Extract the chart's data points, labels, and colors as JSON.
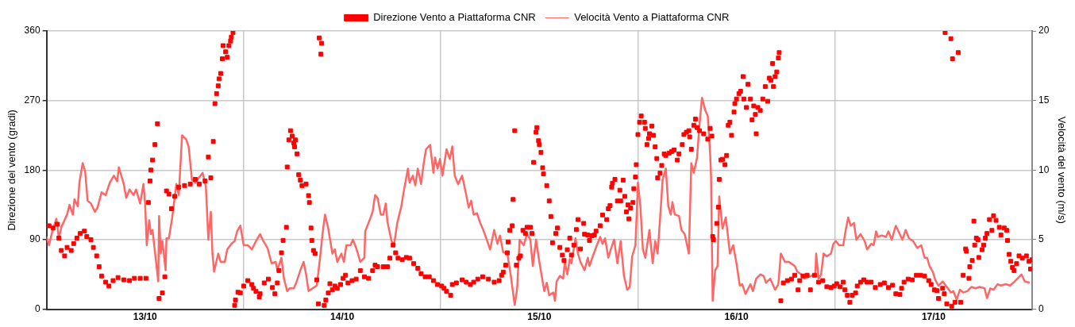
{
  "chart_data": {
    "type": "scatter",
    "ylabel": "Direzione del vento (gradi)",
    "y2label": "Velocità del vento (m/s)",
    "xlim": [
      "--10-13",
      "--10-18"
    ],
    "xticks": [
      {
        "value": "--10-13",
        "label": null
      },
      {
        "value": "--10-13T12:00",
        "label": "13/10"
      },
      {
        "value": "--10-14",
        "label": null
      },
      {
        "value": "--10-14T12:00",
        "label": "14/10"
      },
      {
        "value": "--10-15",
        "label": null
      },
      {
        "value": "--10-15T12:00",
        "label": "15/10"
      },
      {
        "value": "--10-16",
        "label": null
      },
      {
        "value": "--10-16T12:00",
        "label": "16/10"
      },
      {
        "value": "--10-17",
        "label": null
      },
      {
        "value": "--10-17T12:00",
        "label": "17/10"
      },
      {
        "value": "--10-18",
        "label": null
      }
    ],
    "ylim": [
      0,
      360
    ],
    "yticks": [
      0,
      90,
      180,
      270,
      360
    ],
    "y2lim": [
      0,
      20
    ],
    "y2ticks": [
      0,
      5,
      10,
      15,
      20
    ],
    "grid": true,
    "legend": "top",
    "series": [
      {
        "name": "Direzione Vento a Piattaforma CNR",
        "color": "#ff0000",
        "marker": "square",
        "x": [
          "--10-13T00:18",
          "--10-13T00:48",
          "--10-13T01:18",
          "--10-13T01:30",
          "--10-13T01:48",
          "--10-13T02:12",
          "--10-13T02:30",
          "--10-13T03:00",
          "--10-13T03:18",
          "--10-13T03:42",
          "--10-13T04:06",
          "--10-13T04:36",
          "--10-13T04:54",
          "--10-13T05:24",
          "--10-13T05:42",
          "--10-13T06:06",
          "--10-13T06:24",
          "--10-13T06:42",
          "--10-13T07:12",
          "--10-13T07:36",
          "--10-13T08:06",
          "--10-13T08:42",
          "--10-13T09:24",
          "--10-13T10:06",
          "--10-13T10:42",
          "--10-13T11:24",
          "--10-13T12:06",
          "--10-13T12:24",
          "--10-13T12:36",
          "--10-13T12:42",
          "--10-13T12:54",
          "--10-13T13:12",
          "--10-13T13:30",
          "--10-13T13:42",
          "--10-13T14:06",
          "--10-13T14:24",
          "--10-13T14:36",
          "--10-13T14:54",
          "--10-13T15:12",
          "--10-13T15:36",
          "--10-13T16:06",
          "--10-13T16:48",
          "--10-13T17:30",
          "--10-13T18:06",
          "--10-13T18:36",
          "--10-13T19:18",
          "--10-13T19:42",
          "--10-13T20:00",
          "--10-13T20:18",
          "--10-13T20:30",
          "--10-13T20:42",
          "--10-13T20:54",
          "--10-13T21:00",
          "--10-13T21:12",
          "--10-13T21:24",
          "--10-13T21:30",
          "--10-13T21:48",
          "--10-13T22:00",
          "--10-13T22:12",
          "--10-13T22:24",
          "--10-13T22:30",
          "--10-13T22:42",
          "--10-13T22:54",
          "--10-13T23:00",
          "--10-13T23:18",
          "--10-13T23:36",
          "--10-14T00:00",
          "--10-14T00:30",
          "--10-14T01:00",
          "--10-14T01:12",
          "--10-14T01:30",
          "--10-14T01:54",
          "--10-14T02:00",
          "--10-14T02:30",
          "--10-14T03:00",
          "--10-14T03:30",
          "--10-14T03:48",
          "--10-14T04:06",
          "--10-14T04:18",
          "--10-14T04:36",
          "--10-14T04:48",
          "--10-14T05:12",
          "--10-14T05:18",
          "--10-14T05:30",
          "--10-14T05:42",
          "--10-14T05:54",
          "--10-14T06:06",
          "--10-14T06:12",
          "--10-14T06:18",
          "--10-14T06:30",
          "--10-14T06:42",
          "--10-14T06:54",
          "--10-14T07:06",
          "--10-14T07:36",
          "--10-14T07:54",
          "--10-14T08:00",
          "--10-14T08:12",
          "--10-14T08:18",
          "--10-14T08:30",
          "--10-14T08:42",
          "--10-14T08:54",
          "--10-14T09:06",
          "--10-14T09:12",
          "--10-14T09:24",
          "--10-14T09:30",
          "--10-14T09:48",
          "--10-14T10:00",
          "--10-14T10:18",
          "--10-14T10:30",
          "--10-14T10:48",
          "--10-14T11:06",
          "--10-14T11:24",
          "--10-14T11:48",
          "--10-14T12:06",
          "--10-14T12:24",
          "--10-14T12:42",
          "--10-14T13:12",
          "--10-14T13:42",
          "--10-14T14:12",
          "--10-14T14:42",
          "--10-14T15:12",
          "--10-14T15:42",
          "--10-14T16:00",
          "--10-14T16:18",
          "--10-14T17:00",
          "--10-14T17:30",
          "--10-14T17:48",
          "--10-14T18:12",
          "--10-14T18:30",
          "--10-14T18:48",
          "--10-14T19:18",
          "--10-14T19:48",
          "--10-14T20:12",
          "--10-14T20:42",
          "--10-14T21:12",
          "--10-14T21:36",
          "--10-14T22:06",
          "--10-14T22:36",
          "--10-14T23:06",
          "--10-14T23:36",
          "--10-15T00:06",
          "--10-15T00:24",
          "--10-15T00:42",
          "--10-15T01:12",
          "--10-15T01:24",
          "--10-15T01:54",
          "--10-15T02:36",
          "--10-15T03:06",
          "--10-15T03:36",
          "--10-15T04:00",
          "--10-15T04:30",
          "--10-15T05:06",
          "--10-15T05:48",
          "--10-15T06:30",
          "--10-15T07:06",
          "--10-15T07:24",
          "--10-15T07:36",
          "--10-15T07:54",
          "--10-15T08:06",
          "--10-15T08:12",
          "--10-15T08:24",
          "--10-15T08:42",
          "--10-15T08:48",
          "--10-15T09:00",
          "--10-15T09:12",
          "--10-15T09:30",
          "--10-15T09:42",
          "--10-15T10:00",
          "--10-15T10:18",
          "--10-15T10:30",
          "--10-15T10:54",
          "--10-15T11:06",
          "--10-15T11:18",
          "--10-15T11:36",
          "--10-15T11:42",
          "--10-15T11:54",
          "--10-15T12:00",
          "--10-15T12:12",
          "--10-15T12:24",
          "--10-15T12:30",
          "--10-15T12:54",
          "--10-15T13:12",
          "--10-15T13:24",
          "--10-15T13:36",
          "--10-15T14:00",
          "--10-15T14:12",
          "--10-15T14:30",
          "--10-15T14:48",
          "--10-15T15:00",
          "--10-15T15:24",
          "--10-15T15:42",
          "--10-15T15:54",
          "--10-15T16:12",
          "--10-15T16:30",
          "--10-15T16:42",
          "--10-15T17:00",
          "--10-15T17:24",
          "--10-15T17:30",
          "--10-15T17:54",
          "--10-15T18:06",
          "--10-15T18:24",
          "--10-15T18:42",
          "--10-15T18:54",
          "--10-15T19:24",
          "--10-15T19:42",
          "--10-15T20:12",
          "--10-15T20:24",
          "--10-15T20:36",
          "--10-15T20:48",
          "--10-15T20:54",
          "--10-15T21:12",
          "--10-15T21:30",
          "--10-15T21:48",
          "--10-15T21:54",
          "--10-15T22:12",
          "--10-15T22:24",
          "--10-15T22:36",
          "--10-15T22:48",
          "--10-15T22:54",
          "--10-15T23:06",
          "--10-15T23:24",
          "--10-15T23:30",
          "--10-15T23:42",
          "--10-15T23:48",
          "--10-16T00:00",
          "--10-16T00:12",
          "--10-16T00:24",
          "--10-16T00:48",
          "--10-16T00:54",
          "--10-16T01:06",
          "--10-16T01:18",
          "--10-16T01:24",
          "--10-16T01:42",
          "--10-16T01:54",
          "--10-16T02:06",
          "--10-16T02:18",
          "--10-16T02:24",
          "--10-16T02:42",
          "--10-16T02:54",
          "--10-16T03:12",
          "--10-16T03:24",
          "--10-16T03:48",
          "--10-16T04:06",
          "--10-16T04:24",
          "--10-16T04:48",
          "--10-16T05:00",
          "--10-16T05:24",
          "--10-16T05:36",
          "--10-16T05:54",
          "--10-16T06:12",
          "--10-16T06:18",
          "--10-16T06:30",
          "--10-16T06:48",
          "--10-16T07:00",
          "--10-16T07:12",
          "--10-16T07:30",
          "--10-16T08:00",
          "--10-16T08:30",
          "--10-16T08:48",
          "--10-16T09:00",
          "--10-16T09:06",
          "--10-16T09:12",
          "--10-16T09:36",
          "--10-16T09:48",
          "--10-16T09:54",
          "--10-16T10:06",
          "--10-16T10:18",
          "--10-16T10:36",
          "--10-16T10:48",
          "--10-16T11:00",
          "--10-16T11:12",
          "--10-16T11:24",
          "--10-16T11:42",
          "--10-16T11:48",
          "--10-16T12:00",
          "--10-16T12:18",
          "--10-16T12:30",
          "--10-16T12:48",
          "--10-16T12:54",
          "--10-16T13:12",
          "--10-16T13:24",
          "--10-16T13:42",
          "--10-16T13:54",
          "--10-16T14:06",
          "--10-16T14:18",
          "--10-16T14:24",
          "--10-16T14:36",
          "--10-16T14:54",
          "--10-16T15:12",
          "--10-16T15:30",
          "--10-16T15:48",
          "--10-16T16:00",
          "--10-16T16:12",
          "--10-16T16:24",
          "--10-16T16:30",
          "--10-16T16:42",
          "--10-16T16:54",
          "--10-16T17:06",
          "--10-16T17:12",
          "--10-16T17:24",
          "--10-16T17:42",
          "--10-16T18:12",
          "--10-16T18:42",
          "--10-16T19:06",
          "--10-16T19:30",
          "--10-16T19:42",
          "--10-16T20:06",
          "--10-16T20:36",
          "--10-16T21:00",
          "--10-16T21:30",
          "--10-16T22:00",
          "--10-16T22:30",
          "--10-16T23:00",
          "--10-16T23:30",
          "--10-16T23:54",
          "--10-17T00:12",
          "--10-17T00:36",
          "--10-17T01:00",
          "--10-17T01:12",
          "--10-17T01:30",
          "--10-17T01:48",
          "--10-17T02:06",
          "--10-17T02:30",
          "--10-17T02:42",
          "--10-17T03:06",
          "--10-17T03:30",
          "--10-17T03:54",
          "--10-17T04:24",
          "--10-17T04:54",
          "--10-17T05:30",
          "--10-17T06:00",
          "--10-17T06:30",
          "--10-17T07:00",
          "--10-17T07:24",
          "--10-17T07:54",
          "--10-17T08:06",
          "--10-17T08:24",
          "--10-17T08:54",
          "--10-17T09:24",
          "--10-17T09:54",
          "--10-17T10:24",
          "--10-17T10:54",
          "--10-17T11:24",
          "--10-17T11:42",
          "--10-17T12:06",
          "--10-17T12:24",
          "--10-17T12:36",
          "--10-17T13:06",
          "--10-17T13:18",
          "--10-17T13:24",
          "--10-17T13:36",
          "--10-17T14:06",
          "--10-17T14:12",
          "--10-17T14:18",
          "--10-17T14:36",
          "--10-17T15:00",
          "--10-17T15:18",
          "--10-17T15:36",
          "--10-17T15:54",
          "--10-17T16:00",
          "--10-17T16:18",
          "--10-17T16:24",
          "--10-17T16:42",
          "--10-17T16:54",
          "--10-17T17:00",
          "--10-17T17:12",
          "--10-17T17:24",
          "--10-17T17:30",
          "--10-17T17:54",
          "--10-17T18:06",
          "--10-17T18:18",
          "--10-17T18:30",
          "--10-17T18:48",
          "--10-17T19:06",
          "--10-17T19:18",
          "--10-17T19:36",
          "--10-17T20:00",
          "--10-17T20:12",
          "--10-17T20:36",
          "--10-17T20:54",
          "--10-17T21:00",
          "--10-17T21:12",
          "--10-17T21:24",
          "--10-17T21:36",
          "--10-17T21:48",
          "--10-17T22:06",
          "--10-17T22:24",
          "--10-17T22:48",
          "--10-17T23:18",
          "--10-17T23:36",
          "--10-17T23:48",
          "--10-18T00:00"
        ],
        "values": [
          108,
          105,
          110,
          92,
          76,
          69,
          80,
          76,
          85,
          92,
          98,
          101,
          94,
          90,
          80,
          69,
          55,
          43,
          35,
          30,
          37,
          41,
          38,
          37,
          40,
          40,
          40,
          138,
          166,
          180,
          193,
          213,
          240,
          14,
          21,
          42,
          153,
          149,
          130,
          146,
          158,
          160,
          162,
          168,
          162,
          166,
          197,
          170,
          217,
          266,
          279,
          289,
          298,
          305,
          324,
          341,
          333,
          326,
          341,
          347,
          352,
          358,
          5,
          12,
          22,
          21,
          30,
          37,
          32,
          27,
          23,
          16,
          20,
          34,
          39,
          28,
          20,
          34,
          50,
          73,
          89,
          106,
          184,
          219,
          231,
          224,
          215,
          210,
          219,
          201,
          174,
          167,
          160,
          162,
          147,
          138,
          105,
          89,
          76,
          72,
          38,
          7,
          351,
          330,
          344,
          5,
          12,
          21,
          33,
          25,
          30,
          27,
          32,
          40,
          44,
          34,
          37,
          39,
          50,
          42,
          40,
          50,
          57,
          55,
          55,
          55,
          66,
          83,
          73,
          66,
          64,
          67,
          66,
          59,
          53,
          46,
          42,
          42,
          37,
          32,
          30,
          27,
          23,
          18,
          32,
          34,
          38,
          35,
          32,
          35,
          39,
          42,
          39,
          35,
          37,
          44,
          48,
          57,
          73,
          87,
          102,
          108,
          142,
          231,
          57,
          66,
          69,
          102,
          98,
          106,
          106,
          98,
          190,
          229,
          235,
          218,
          213,
          203,
          183,
          175,
          160,
          140,
          120,
          86,
          98,
          105,
          80,
          70,
          63,
          77,
          92,
          70,
          83,
          103,
          116,
          78,
          111,
          97,
          96,
          89,
          95,
          96,
          101,
          108,
          122,
          116,
          130,
          134,
          158,
          163,
          168,
          140,
          154,
          140,
          167,
          146,
          126,
          135,
          117,
          131,
          138,
          156,
          171,
          187,
          226,
          242,
          250,
          242,
          234,
          213,
          221,
          227,
          237,
          225,
          210,
          195,
          170,
          176,
          186,
          201,
          199,
          202,
          204,
          206,
          193,
          201,
          213,
          226,
          229,
          231,
          223,
          207,
          238,
          246,
          235,
          231,
          227,
          220,
          234,
          224,
          94,
          90,
          111,
          132,
          168,
          193,
          194,
          187,
          199,
          238,
          242,
          225,
          255,
          266,
          272,
          279,
          282,
          301,
          272,
          261,
          291,
          272,
          245,
          263,
          252,
          227,
          261,
          257,
          272,
          288,
          269,
          299,
          296,
          318,
          288,
          301,
          307,
          325,
          332,
          11,
          34,
          37,
          39,
          44,
          25,
          37,
          43,
          44,
          25,
          44,
          35,
          37,
          29,
          28,
          30,
          33,
          29,
          35,
          25,
          18,
          9,
          18,
          21,
          30,
          35,
          38,
          35,
          35,
          28,
          32,
          34,
          28,
          31,
          20,
          19,
          27,
          35,
          39,
          38,
          44,
          44,
          43,
          37,
          32,
          25,
          24,
          14,
          27,
          20,
          358,
          7,
          350,
          4,
          324,
          9,
          332,
          9,
          44,
          78,
          75,
          40,
          55,
          63,
          114,
          83,
          92,
          90,
          67,
          77,
          83,
          92,
          98,
          116,
          102,
          121,
          115,
          106,
          96,
          105,
          102,
          89,
          71,
          62,
          54,
          50,
          59,
          69,
          66,
          69,
          62,
          52,
          64
        ]
      },
      {
        "name": "Velocità Vento a Piattaforma CNR",
        "type": "line",
        "axis": "y2",
        "color": "#ff6666",
        "marker": "none",
        "x": [
          "--10-13T00:00",
          "--10-13T00:18",
          "--10-13T00:42",
          "--10-13T01:12",
          "--10-13T01:30",
          "--10-13T01:48",
          "--10-13T02:30",
          "--10-13T02:48",
          "--10-13T03:12",
          "--10-13T03:24",
          "--10-13T03:48",
          "--10-13T04:00",
          "--10-13T04:24",
          "--10-13T04:42",
          "--10-13T05:00",
          "--10-13T05:24",
          "--10-13T05:54",
          "--10-13T06:12",
          "--10-13T06:42",
          "--10-13T07:12",
          "--10-13T07:42",
          "--10-13T08:12",
          "--10-13T08:36",
          "--10-13T08:48",
          "--10-13T09:24",
          "--10-13T09:42",
          "--10-13T10:06",
          "--10-13T10:36",
          "--10-13T10:54",
          "--10-13T11:24",
          "--10-13T11:48",
          "--10-13T12:00",
          "--10-13T12:12",
          "--10-13T12:30",
          "--10-13T12:42",
          "--10-13T12:54",
          "--10-13T13:36",
          "--10-13T13:42",
          "--10-13T13:54",
          "--10-13T14:06",
          "--10-13T14:30",
          "--10-13T14:36",
          "--10-13T14:54",
          "--10-13T15:18",
          "--10-13T15:48",
          "--10-13T16:06",
          "--10-13T16:30",
          "--10-13T17:00",
          "--10-13T17:18",
          "--10-13T17:42",
          "--10-13T18:06",
          "--10-13T19:00",
          "--10-13T19:24",
          "--10-13T19:42",
          "--10-13T20:00",
          "--10-13T20:12",
          "--10-13T20:24",
          "--10-13T20:54",
          "--10-13T21:12",
          "--10-13T21:42",
          "--10-13T22:00",
          "--10-13T22:30",
          "--10-13T22:54",
          "--10-13T23:12",
          "--10-13T23:36",
          "--10-14T00:00",
          "--10-14T00:30",
          "--10-14T01:00",
          "--10-14T01:30",
          "--10-14T02:00",
          "--10-14T02:24",
          "--10-14T02:54",
          "--10-14T03:24",
          "--10-14T03:54",
          "--10-14T04:06",
          "--10-14T04:36",
          "--10-14T04:54",
          "--10-14T05:18",
          "--10-14T05:36",
          "--10-14T06:06",
          "--10-14T06:24",
          "--10-14T06:54",
          "--10-14T07:18",
          "--10-14T07:36",
          "--10-14T07:54",
          "--10-14T08:24",
          "--10-14T08:54",
          "--10-14T09:18",
          "--10-14T09:36",
          "--10-14T09:54",
          "--10-14T10:18",
          "--10-14T10:48",
          "--10-14T11:06",
          "--10-14T11:24",
          "--10-14T11:54",
          "--10-14T12:12",
          "--10-14T12:30",
          "--10-14T13:00",
          "--10-14T13:18",
          "--10-14T13:42",
          "--10-14T14:12",
          "--10-14T14:42",
          "--10-14T14:48",
          "--10-14T15:12",
          "--10-14T15:24",
          "--10-14T15:42",
          "--10-14T16:00",
          "--10-14T16:18",
          "--10-14T16:42",
          "--10-14T17:00",
          "--10-14T17:18",
          "--10-14T17:30",
          "--10-14T18:00",
          "--10-14T18:18",
          "--10-14T18:42",
          "--10-14T19:12",
          "--10-14T19:30",
          "--10-14T20:00",
          "--10-14T20:12",
          "--10-14T20:36",
          "--10-14T20:54",
          "--10-14T21:12",
          "--10-14T21:36",
          "--10-14T21:54",
          "--10-14T22:12",
          "--10-14T22:42",
          "--10-14T23:06",
          "--10-14T23:18",
          "--10-14T23:36",
          "--10-14T23:54",
          "--10-15T00:12",
          "--10-15T00:42",
          "--10-15T01:06",
          "--10-15T01:24",
          "--10-15T01:42",
          "--10-15T02:06",
          "--10-15T02:36",
          "--10-15T03:06",
          "--10-15T03:24",
          "--10-15T03:42",
          "--10-15T04:00",
          "--10-15T04:24",
          "--10-15T04:48",
          "--10-15T05:06",
          "--10-15T05:36",
          "--10-15T06:00",
          "--10-15T06:30",
          "--10-15T06:54",
          "--10-15T07:12",
          "--10-15T07:36",
          "--10-15T08:06",
          "--10-15T08:30",
          "--10-15T09:00",
          "--10-15T09:18",
          "--10-15T09:36",
          "--10-15T10:06",
          "--10-15T10:30",
          "--10-15T10:54",
          "--10-15T11:12",
          "--10-15T11:36",
          "--10-15T12:00",
          "--10-15T12:12",
          "--10-15T12:36",
          "--10-15T12:54",
          "--10-15T13:12",
          "--10-15T13:42",
          "--10-15T13:54",
          "--10-15T14:06",
          "--10-15T14:30",
          "--10-15T14:54",
          "--10-15T15:06",
          "--10-15T15:24",
          "--10-15T15:42",
          "--10-15T15:54",
          "--10-15T16:24",
          "--10-15T16:42",
          "--10-15T17:00",
          "--10-15T17:30",
          "--10-15T17:54",
          "--10-15T18:06",
          "--10-15T18:30",
          "--10-15T19:00",
          "--10-15T19:24",
          "--10-15T19:42",
          "--10-15T20:00",
          "--10-15T20:24",
          "--10-15T20:42",
          "--10-15T21:06",
          "--10-15T21:30",
          "--10-15T21:54",
          "--10-15T22:18",
          "--10-15T22:42",
          "--10-15T23:00",
          "--10-15T23:18",
          "--10-15T23:42",
          "--10-16T00:00",
          "--10-16T00:18",
          "--10-16T00:36",
          "--10-16T00:54",
          "--10-16T01:24",
          "--10-16T01:48",
          "--10-16T02:06",
          "--10-16T02:24",
          "--10-16T02:48",
          "--10-16T03:00",
          "--10-16T03:24",
          "--10-16T03:42",
          "--10-16T04:00",
          "--10-16T04:12",
          "--10-16T04:30",
          "--10-16T05:00",
          "--10-16T05:18",
          "--10-16T05:42",
          "--10-16T06:12",
          "--10-16T06:30",
          "--10-16T06:48",
          "--10-16T07:12",
          "--10-16T07:30",
          "--10-16T07:48",
          "--10-16T08:12",
          "--10-16T08:30",
          "--10-16T08:48",
          "--10-16T08:54",
          "--10-16T09:06",
          "--10-16T09:24",
          "--10-16T09:42",
          "--10-16T09:54",
          "--10-16T10:18",
          "--10-16T10:42",
          "--10-16T11:12",
          "--10-16T11:36",
          "--10-16T12:00",
          "--10-16T12:24",
          "--10-16T12:42",
          "--10-16T13:06",
          "--10-16T13:42",
          "--10-16T14:00",
          "--10-16T14:24",
          "--10-16T14:54",
          "--10-16T15:18",
          "--10-16T15:36",
          "--10-16T16:06",
          "--10-16T16:42",
          "--10-16T17:06",
          "--10-16T17:24",
          "--10-16T17:54",
          "--10-16T18:24",
          "--10-16T19:06",
          "--10-16T19:24",
          "--10-16T19:54",
          "--10-16T20:18",
          "--10-16T21:06",
          "--10-16T21:36",
          "--10-16T21:42",
          "--10-16T22:00",
          "--10-16T22:18",
          "--10-16T22:36",
          "--10-16T23:00",
          "--10-16T23:30",
          "--10-16T23:48",
          "--10-17T00:06",
          "--10-17T00:30",
          "--10-17T01:00",
          "--10-17T01:18",
          "--10-17T01:36",
          "--10-17T01:54",
          "--10-17T02:18",
          "--10-17T02:36",
          "--10-17T03:06",
          "--10-17T03:36",
          "--10-17T03:54",
          "--10-17T04:24",
          "--10-17T04:42",
          "--10-17T05:00",
          "--10-17T05:12",
          "--10-17T05:42",
          "--10-17T06:12",
          "--10-17T06:30",
          "--10-17T06:54",
          "--10-17T07:24",
          "--10-17T07:48",
          "--10-17T08:12",
          "--10-17T08:36",
          "--10-17T09:00",
          "--10-17T09:30",
          "--10-17T10:00",
          "--10-17T10:30",
          "--10-17T10:54",
          "--10-17T11:12",
          "--10-17T11:30",
          "--10-17T11:54",
          "--10-17T12:12",
          "--10-17T12:36",
          "--10-17T13:06",
          "--10-17T13:36",
          "--10-17T14:06",
          "--10-17T14:24",
          "--10-17T14:48",
          "--10-17T15:12",
          "--10-17T15:36",
          "--10-17T16:06",
          "--10-17T16:36",
          "--10-17T17:06",
          "--10-17T17:36",
          "--10-17T18:12",
          "--10-17T18:30",
          "--10-17T18:54",
          "--10-17T19:18",
          "--10-17T19:48",
          "--10-17T20:12",
          "--10-17T20:48",
          "--10-17T21:18",
          "--10-17T21:42",
          "--10-17T22:12",
          "--10-17T22:42",
          "--10-17T23:06",
          "--10-17T23:42"
        ],
        "values": [
          5.2,
          4.6,
          5.6,
          6.5,
          5.1,
          5.9,
          6.8,
          7.5,
          6.8,
          7.9,
          7.4,
          9.1,
          10.5,
          9.9,
          7.8,
          7.6,
          7.0,
          7.3,
          8.4,
          8.2,
          9.1,
          9.6,
          9.2,
          10.2,
          9.0,
          8.0,
          8.6,
          8.2,
          8.6,
          7.6,
          9.0,
          7.6,
          4.6,
          6.4,
          5.4,
          5.7,
          2.0,
          6.7,
          4.0,
          4.9,
          2.8,
          5.1,
          5.1,
          6.6,
          9.0,
          8.2,
          12.5,
          12.2,
          11.7,
          9.3,
          9.1,
          9.8,
          8.8,
          5.0,
          7.0,
          4.0,
          2.7,
          4.0,
          3.4,
          3.4,
          4.3,
          4.7,
          4.9,
          5.6,
          6.0,
          4.6,
          4.6,
          4.3,
          4.9,
          5.4,
          4.9,
          4.4,
          3.3,
          3.4,
          2.8,
          3.7,
          2.2,
          1.3,
          1.5,
          1.5,
          1.9,
          2.8,
          3.4,
          2.5,
          1.3,
          1.5,
          1.7,
          3.7,
          5.4,
          6.8,
          5.8,
          4.0,
          4.3,
          3.4,
          4.0,
          3.4,
          4.6,
          4.6,
          5.0,
          4.4,
          3.4,
          3.7,
          5.6,
          6.2,
          6.5,
          7.0,
          8.2,
          8.0,
          6.8,
          6.8,
          7.6,
          6.3,
          4.9,
          4.6,
          6.2,
          7.4,
          8.5,
          10.1,
          9.1,
          9.6,
          8.9,
          10.1,
          9.0,
          10.4,
          11.5,
          11.8,
          9.8,
          10.9,
          10.1,
          10.8,
          9.6,
          11.5,
          10.8,
          11.7,
          9.6,
          9.0,
          9.6,
          8.2,
          7.3,
          7.8,
          6.8,
          6.9,
          6.2,
          5.8,
          5.0,
          4.3,
          5.7,
          4.7,
          5.3,
          4.1,
          4.0,
          2.5,
          0.3,
          1.5,
          5.0,
          4.6,
          5.4,
          5.0,
          3.1,
          5.0,
          3.4,
          2.7,
          1.3,
          1.9,
          1.0,
          1.2,
          0.6,
          2.0,
          2.4,
          2.2,
          3.4,
          2.5,
          3.6,
          3.3,
          5.1,
          4.0,
          3.4,
          2.8,
          3.7,
          3.1,
          3.8,
          4.6,
          5.2,
          4.7,
          5.1,
          3.7,
          4.3,
          5.0,
          3.3,
          4.9,
          2.4,
          1.4,
          1.6,
          3.8,
          4.6,
          9.1,
          7.4,
          4.3,
          3.7,
          5.7,
          3.3,
          4.9,
          4.0,
          7.4,
          9.3,
          10.1,
          7.4,
          6.8,
          7.7,
          6.8,
          6.7,
          5.7,
          5.4,
          4.0,
          10.5,
          9.8,
          10.9,
          13.3,
          15.2,
          14.3,
          13.9,
          11.1,
          9.6,
          0.6,
          2.8,
          3.1,
          8.1,
          5.8,
          6.6,
          4.0,
          4.6,
          3.3,
          1.7,
          1.8,
          1.1,
          1.8,
          1.3,
          2.2,
          2.5,
          2.4,
          1.9,
          2.2,
          1.4,
          1.8,
          4.0,
          3.4,
          3.4,
          3.1,
          2.7,
          2.5,
          2.2,
          2.4,
          2.5,
          4.0,
          2.2,
          2.5,
          4.0,
          3.8,
          4.0,
          4.7,
          4.9,
          4.6,
          4.6,
          5.7,
          6.6,
          6.0,
          6.2,
          5.0,
          5.4,
          4.9,
          4.3,
          4.7,
          4.6,
          5.6,
          5.2,
          5.3,
          5.2,
          5.6,
          5.0,
          6.0,
          5.5,
          5.0,
          5.7,
          5.1,
          4.9,
          4.4,
          4.6,
          3.7,
          3.7,
          3.1,
          2.7,
          2.1,
          1.7,
          2.0,
          1.6,
          1.2,
          1.3,
          0.7,
          1.4,
          1.2,
          1.3,
          1.6,
          1.5,
          1.6,
          1.5,
          0.8,
          1.5,
          1.4,
          1.8,
          1.7,
          1.8,
          1.7,
          1.9,
          2.2,
          2.5,
          2.0,
          1.9
        ]
      }
    ]
  }
}
